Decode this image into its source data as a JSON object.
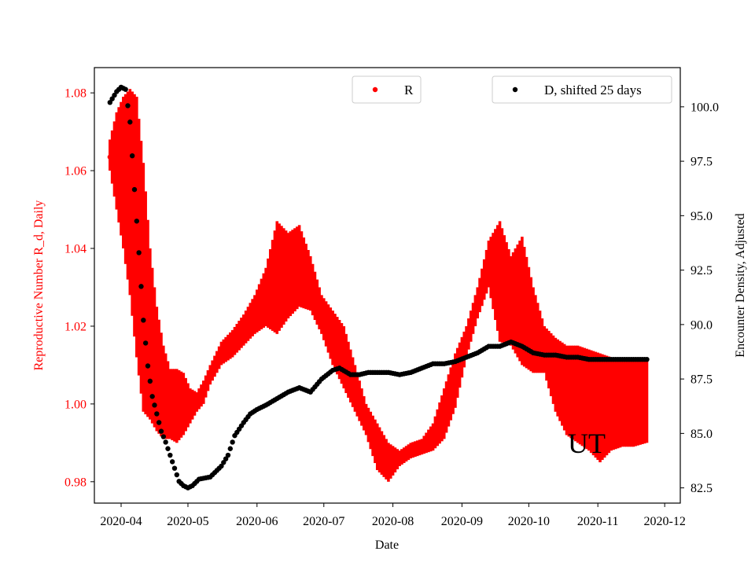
{
  "chart_data": {
    "type": "scatter",
    "title": "",
    "xlabel": "Date",
    "ylabel_left": "Reproductive Number R_d, Daily",
    "ylabel_right": "Encounter Density, Adjusted",
    "annotation": "UT",
    "x_ticks": [
      "2020-04",
      "2020-05",
      "2020-06",
      "2020-07",
      "2020-08",
      "2020-09",
      "2020-10",
      "2020-11",
      "2020-12"
    ],
    "x_tick_days": [
      5,
      35,
      66,
      96,
      127,
      158,
      188,
      219,
      249
    ],
    "xlim_days": [
      -7,
      256
    ],
    "ylim_left": [
      0.9745,
      1.0865
    ],
    "yticks_left": [
      0.98,
      1.0,
      1.02,
      1.04,
      1.06,
      1.08
    ],
    "ytick_labels_left": [
      "0.98",
      "1.00",
      "1.02",
      "1.04",
      "1.06",
      "1.08"
    ],
    "ylim_right": [
      81.8,
      101.8
    ],
    "yticks_right": [
      82.5,
      85.0,
      87.5,
      90.0,
      92.5,
      95.0,
      97.5,
      100.0
    ],
    "ytick_labels_right": [
      "82.5",
      "85.0",
      "87.5",
      "90.0",
      "92.5",
      "95.0",
      "97.5",
      "100.0"
    ],
    "colors": {
      "R": "#ff0000",
      "D": "#000000",
      "left_axis": "#ff0000"
    },
    "legend": [
      {
        "label": "R",
        "color": "#ff0000",
        "position": "top-center"
      },
      {
        "label": "D, shifted 25 days",
        "color": "#000000",
        "position": "top-right"
      }
    ],
    "series": [
      {
        "name": "R",
        "axis": "left",
        "style": "band",
        "start_point": {
          "day": 0,
          "value": 1.0635
        },
        "days": [
          0,
          3,
          6,
          9,
          12,
          15,
          18,
          21,
          24,
          27,
          30,
          33,
          36,
          39,
          42,
          45,
          50,
          55,
          60,
          65,
          70,
          75,
          80,
          85,
          90,
          95,
          100,
          105,
          110,
          115,
          120,
          125,
          130,
          135,
          140,
          145,
          150,
          155,
          160,
          165,
          170,
          175,
          180,
          185,
          190,
          195,
          200,
          205,
          210,
          215,
          220,
          225,
          230,
          235,
          241
        ],
        "upper": [
          1.068,
          1.075,
          1.079,
          1.081,
          1.079,
          1.062,
          1.04,
          1.025,
          1.015,
          1.009,
          1.009,
          1.008,
          1.004,
          1.003,
          1.006,
          1.01,
          1.016,
          1.019,
          1.023,
          1.028,
          1.035,
          1.047,
          1.044,
          1.046,
          1.038,
          1.028,
          1.024,
          1.02,
          1.01,
          1.0,
          0.995,
          0.99,
          0.988,
          0.99,
          0.991,
          0.995,
          1.004,
          1.013,
          1.02,
          1.03,
          1.042,
          1.047,
          1.038,
          1.043,
          1.03,
          1.02,
          1.017,
          1.015,
          1.015,
          1.014,
          1.013,
          1.012,
          1.012,
          1.011,
          1.011
        ],
        "lower": [
          1.06,
          1.05,
          1.04,
          1.028,
          1.012,
          0.998,
          0.996,
          0.993,
          0.991,
          0.991,
          0.99,
          0.992,
          0.995,
          0.998,
          1.0,
          1.005,
          1.01,
          1.012,
          1.015,
          1.018,
          1.02,
          1.018,
          1.022,
          1.025,
          1.024,
          1.018,
          1.01,
          1.004,
          0.998,
          0.992,
          0.983,
          0.98,
          0.984,
          0.986,
          0.987,
          0.988,
          0.991,
          0.999,
          1.012,
          1.022,
          1.03,
          1.016,
          1.015,
          1.01,
          1.008,
          1.008,
          0.998,
          0.992,
          0.99,
          0.988,
          0.985,
          0.988,
          0.989,
          0.989,
          0.99
        ]
      },
      {
        "name": "D, shifted 25 days",
        "axis": "right",
        "style": "dots",
        "days": [
          0,
          3,
          5,
          7,
          9,
          11,
          13,
          15,
          17,
          19,
          21,
          23,
          25,
          27,
          29,
          31,
          33,
          35,
          37,
          40,
          45,
          50,
          53,
          56,
          60,
          63,
          66,
          70,
          75,
          80,
          85,
          90,
          95,
          100,
          103,
          108,
          112,
          116,
          120,
          125,
          130,
          135,
          140,
          145,
          150,
          155,
          160,
          165,
          170,
          175,
          180,
          185,
          190,
          195,
          200,
          205,
          210,
          215,
          220,
          225,
          230,
          235,
          241
        ],
        "values": [
          100.2,
          100.7,
          100.9,
          100.8,
          99.3,
          96.2,
          93.3,
          90.2,
          88.1,
          86.7,
          85.9,
          85.1,
          84.6,
          84.0,
          83.4,
          82.8,
          82.6,
          82.5,
          82.6,
          82.9,
          83.0,
          83.5,
          84.0,
          84.9,
          85.5,
          85.9,
          86.1,
          86.3,
          86.6,
          86.9,
          87.1,
          86.9,
          87.5,
          87.9,
          88.0,
          87.7,
          87.7,
          87.8,
          87.8,
          87.8,
          87.7,
          87.8,
          88.0,
          88.2,
          88.2,
          88.3,
          88.5,
          88.7,
          89.0,
          89.0,
          89.2,
          89.0,
          88.7,
          88.6,
          88.6,
          88.5,
          88.5,
          88.4,
          88.4,
          88.4,
          88.4,
          88.4,
          88.4
        ]
      }
    ]
  }
}
